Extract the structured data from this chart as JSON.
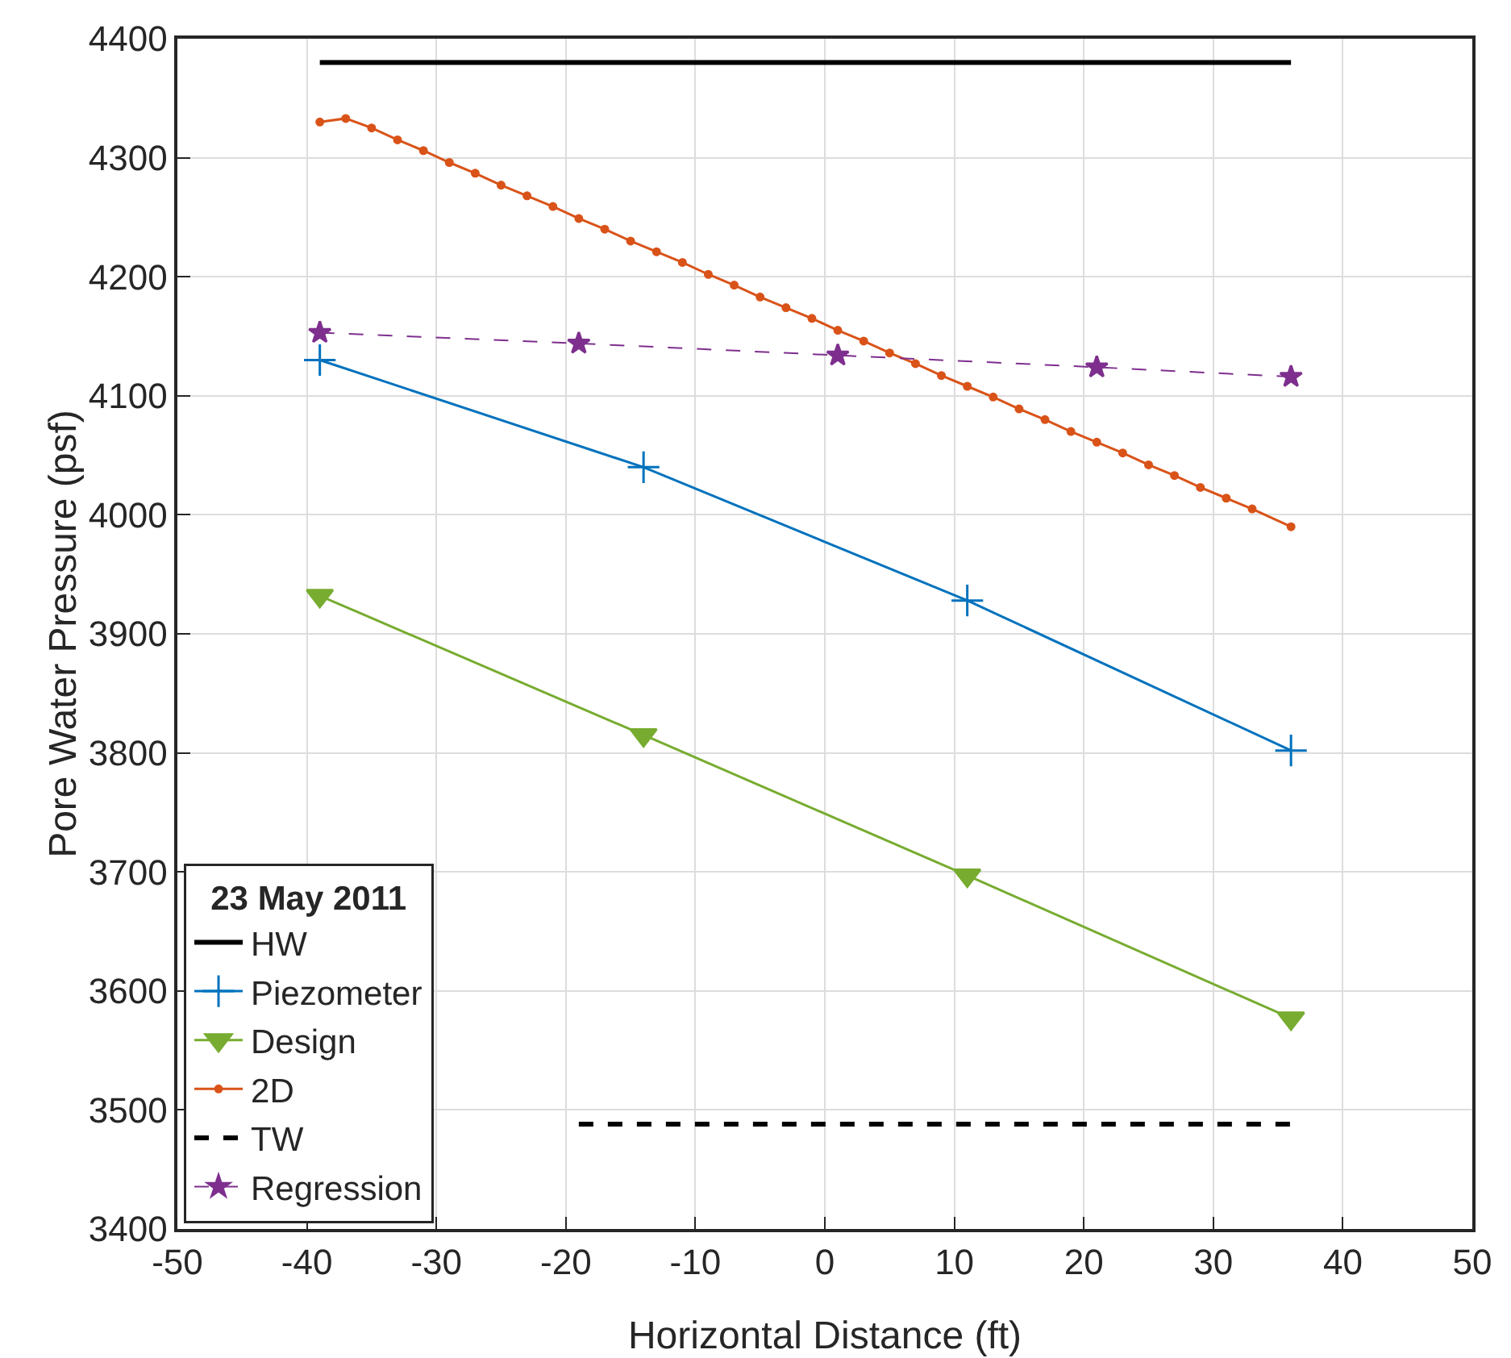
{
  "chart_data": {
    "type": "line",
    "xlabel": "Horizontal Distance (ft)",
    "ylabel": "Pore Water Pressure (psf)",
    "legend_title": "23 May 2011",
    "legend": "bottom left",
    "grid": true,
    "xlim": [
      -50,
      50
    ],
    "xticks": [
      -50,
      -40,
      -30,
      -20,
      -10,
      0,
      10,
      20,
      30,
      40,
      50
    ],
    "ylim": [
      3400,
      4400
    ],
    "yticks": [
      3400,
      3500,
      3600,
      3700,
      3800,
      3900,
      4000,
      4100,
      4200,
      4300,
      4400
    ],
    "series": [
      {
        "name": "HW",
        "color": "#000000",
        "x": [
          -39,
          36
        ],
        "values": [
          4380,
          4380
        ],
        "marker": "none",
        "line_style": "solid"
      },
      {
        "name": "Piezometer",
        "color": "#0072bd",
        "x": [
          -39,
          -14,
          11,
          36
        ],
        "values": [
          4130,
          4040,
          3928,
          3802
        ],
        "marker": "cross",
        "line_style": "solid"
      },
      {
        "name": "Design",
        "color": "#77ac30",
        "x": [
          -39,
          -14,
          11,
          36
        ],
        "values": [
          3932,
          3815,
          3697,
          3577
        ],
        "marker": "triangle",
        "line_style": "solid"
      },
      {
        "name": "2D",
        "color": "#d95319",
        "x": [
          -39,
          -37,
          -35,
          -33,
          -31,
          -29,
          -27,
          -25,
          -23,
          -21,
          -19,
          -17,
          -15,
          -13,
          -11,
          -9,
          -7,
          -5,
          -3,
          -1,
          1,
          3,
          5,
          7,
          9,
          11,
          13,
          15,
          17,
          19,
          21,
          23,
          25,
          27,
          29,
          31,
          33,
          36
        ],
        "values": [
          4330,
          4333,
          4325,
          4315,
          4306,
          4296,
          4287,
          4277,
          4268,
          4259,
          4249,
          4240,
          4230,
          4221,
          4212,
          4202,
          4193,
          4183,
          4174,
          4165,
          4155,
          4146,
          4136,
          4127,
          4117,
          4108,
          4099,
          4089,
          4080,
          4070,
          4061,
          4052,
          4042,
          4033,
          4023,
          4014,
          4005,
          3990
        ],
        "marker": "circle",
        "line_style": "solid"
      },
      {
        "name": "TW",
        "color": "#000000",
        "x": [
          -19,
          36
        ],
        "values": [
          3488,
          3488
        ],
        "marker": "none",
        "line_style": "dashed"
      },
      {
        "name": "Regression",
        "color": "#7e2f8e",
        "x": [
          -39,
          -19,
          1,
          21,
          36
        ],
        "values": [
          4153,
          4144,
          4134,
          4124,
          4116
        ],
        "marker": "star",
        "line_style": "dashed"
      }
    ]
  }
}
